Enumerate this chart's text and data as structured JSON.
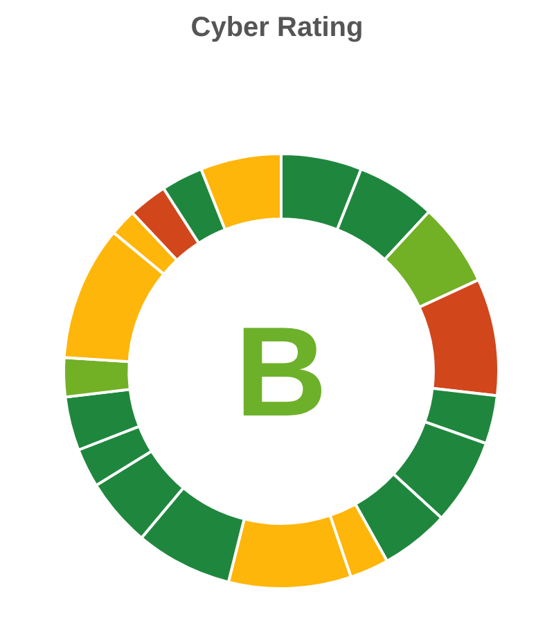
{
  "chart_data": {
    "type": "donut",
    "title": "Cyber Rating",
    "categories": [
      null,
      null,
      null,
      null,
      null,
      null,
      null,
      null,
      null,
      null,
      null,
      null,
      null,
      null,
      null,
      null,
      null,
      null,
      null
    ],
    "values": [
      6.0,
      5.9,
      6.2,
      8.7,
      3.6,
      6.4,
      5.1,
      2.9,
      9.1,
      7.2,
      5.1,
      2.9,
      4.0,
      2.9,
      10.0,
      2.0,
      2.9,
      3.1,
      6.0
    ],
    "colors": [
      "#1f873d",
      "#1f873d",
      "#72b026",
      "#d2461c",
      "#1f873d",
      "#1f873d",
      "#1f873d",
      "#ffb60a",
      "#ffb60a",
      "#1f873d",
      "#1f873d",
      "#1f873d",
      "#1f873d",
      "#72b026",
      "#ffb60a",
      "#ffb60a",
      "#d2461c",
      "#1f873d",
      "#ffb60a"
    ],
    "annotations": [
      "B"
    ]
  }
}
